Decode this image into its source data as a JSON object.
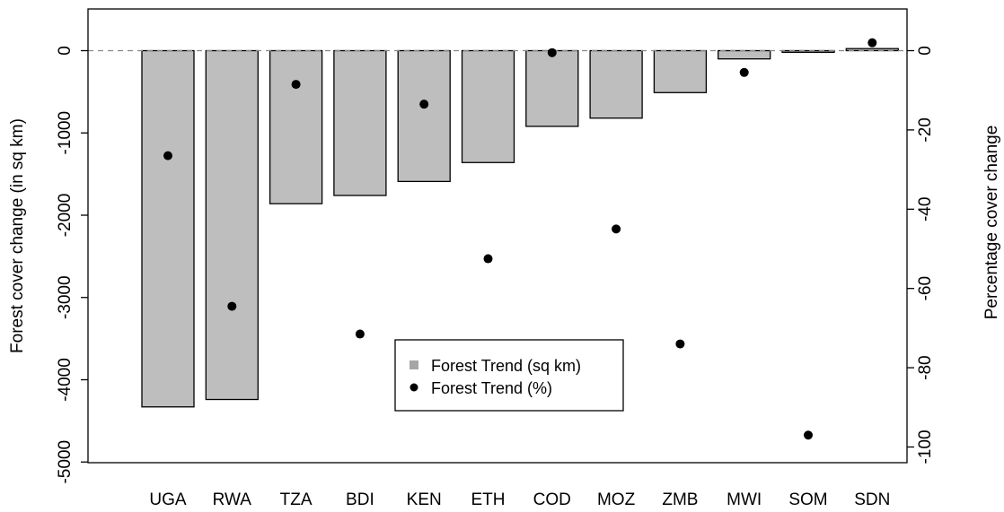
{
  "chart_data": {
    "type": "bar",
    "categories": [
      "UGA",
      "RWA",
      "TZA",
      "BDI",
      "KEN",
      "ETH",
      "COD",
      "MOZ",
      "ZMB",
      "MWI",
      "SOM",
      "SDN"
    ],
    "series": [
      {
        "name": "Forest Trend (sq km)",
        "type": "bar",
        "axis": "left",
        "values": [
          -4330,
          -4240,
          -1860,
          -1760,
          -1590,
          -1360,
          -920,
          -820,
          -510,
          -100,
          -20,
          25
        ]
      },
      {
        "name": "Forest Trend (%)",
        "type": "scatter",
        "axis": "right",
        "values": [
          -26.5,
          -64.5,
          -8.5,
          -71.5,
          -13.5,
          -52.5,
          -0.5,
          -45,
          -74,
          -5.5,
          -97,
          2
        ]
      }
    ],
    "ylabel": "Forest cover change (in sq km)",
    "ylabel_right": "Percentage cover change",
    "ylim": [
      -5000,
      500
    ],
    "ylim_right": [
      -105,
      10
    ],
    "yticks": [
      0,
      -1000,
      -2000,
      -3000,
      -4000,
      -5000
    ],
    "yticks_right": [
      0,
      -20,
      -40,
      -60,
      -80,
      -100
    ],
    "ytick_labels": [
      "0",
      "-1000",
      "-2000",
      "-3000",
      "-4000",
      "-5000"
    ],
    "ytick_labels_right": [
      "0",
      "-20",
      "-40",
      "-60",
      "-80",
      "-100"
    ],
    "zero_line": "dashed",
    "legend_position": "bottom-center",
    "colors": {
      "bar_fill": "#bebebe",
      "bar_stroke": "#000000",
      "point": "#000000",
      "legend_bar_swatch": "#a6a6a6"
    }
  }
}
